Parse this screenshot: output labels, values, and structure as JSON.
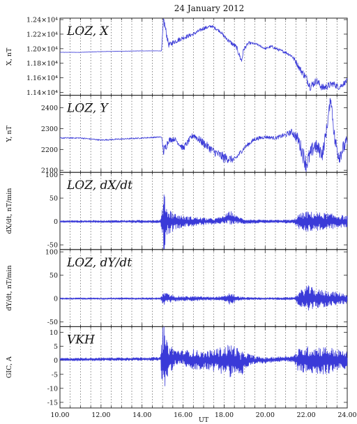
{
  "title": "24 January 2012",
  "chart_data": {
    "type": "line",
    "title": "24 January 2012",
    "xlabel": "UT",
    "xlim": [
      10,
      24
    ],
    "xticks": [
      10,
      12,
      14,
      16,
      18,
      20,
      22,
      24
    ],
    "xtick_labels": [
      "10.00",
      "12.00",
      "14.00",
      "16.00",
      "18.00",
      "20.00",
      "22.00",
      "24.00"
    ],
    "grid": "vertical dotted every 0.5 h",
    "line_color": "#3a3ad8",
    "panels": [
      {
        "label": "LOZ, X",
        "ylabel": "X, nT",
        "ylim": [
          11360,
          12420
        ],
        "yticks": [
          11400,
          11600,
          11800,
          12000,
          12200,
          12400
        ],
        "ytick_labels": [
          "1.14×10⁴",
          "1.16×10⁴",
          "1.18×10⁴",
          "1.20×10⁴",
          "1.22×10⁴",
          "1.24×10⁴"
        ],
        "series": [
          {
            "mode": "trend",
            "x": [
              10,
              11,
              12,
              13,
              14,
              14.95,
              15.05,
              15.3,
              15.6,
              16,
              16.5,
              17,
              17.4,
              17.8,
              18,
              18.3,
              18.6,
              18.85,
              18.95,
              19.2,
              19.6,
              20,
              20.3,
              20.7,
              21,
              21.3,
              21.5,
              21.7,
              22,
              22.2,
              22.5,
              22.8,
              23,
              23.3,
              23.6,
              24
            ],
            "y": [
              11950,
              11950,
              11960,
              11965,
              11970,
              11970,
              12400,
              12050,
              12100,
              12150,
              12200,
              12280,
              12310,
              12240,
              12170,
              12090,
              12020,
              11830,
              11990,
              12080,
              12060,
              12000,
              12030,
              11980,
              11950,
              11900,
              11820,
              11720,
              11600,
              11480,
              11560,
              11460,
              11480,
              11520,
              11470,
              11560
            ],
            "noise": [
              2,
              2,
              2,
              2,
              2,
              2,
              60,
              35,
              35,
              30,
              25,
              25,
              20,
              20,
              25,
              30,
              35,
              40,
              30,
              20,
              15,
              15,
              20,
              20,
              20,
              25,
              35,
              45,
              55,
              60,
              50,
              55,
              50,
              45,
              40,
              35
            ]
          }
        ]
      },
      {
        "label": "LOZ, Y",
        "ylabel": "Y, nT",
        "ylim": [
          2090,
          2460
        ],
        "yticks": [
          2100,
          2200,
          2300,
          2400
        ],
        "ytick_labels": [
          "2100",
          "2200",
          "2300",
          "2400"
        ],
        "series": [
          {
            "mode": "trend",
            "x": [
              10,
              11,
              12,
              13,
              14,
              14.95,
              15.05,
              15.3,
              15.6,
              16,
              16.5,
              17,
              17.5,
              18,
              18.5,
              19,
              19.5,
              20,
              20.5,
              21,
              21.3,
              21.6,
              22,
              22.4,
              22.8,
              23,
              23.2,
              23.4,
              23.6,
              24
            ],
            "y": [
              2255,
              2255,
              2245,
              2250,
              2255,
              2260,
              2190,
              2245,
              2250,
              2205,
              2270,
              2230,
              2190,
              2160,
              2150,
              2210,
              2250,
              2260,
              2255,
              2270,
              2285,
              2250,
              2130,
              2220,
              2180,
              2300,
              2450,
              2240,
              2170,
              2240
            ],
            "noise": [
              3,
              3,
              3,
              3,
              3,
              3,
              25,
              15,
              10,
              15,
              15,
              20,
              20,
              25,
              15,
              10,
              10,
              8,
              8,
              12,
              15,
              30,
              45,
              35,
              35,
              30,
              25,
              40,
              40,
              30
            ]
          }
        ]
      },
      {
        "label": "LOZ, dX/dt",
        "ylabel": "dX/dt, nT/min",
        "ylim": [
          -60,
          105
        ],
        "yticks": [
          -50,
          0,
          50,
          100
        ],
        "ytick_labels": [
          "-50",
          "0",
          "50",
          "100"
        ],
        "series": [
          {
            "mode": "oscillation",
            "x": [
              10,
              14.9,
              15.0,
              15.05,
              15.2,
              15.6,
              16,
              16.5,
              17,
              17.5,
              18,
              18.3,
              18.6,
              19,
              20,
              21.4,
              21.6,
              22,
              22.5,
              23,
              23.5,
              24
            ],
            "amp": [
              2,
              3,
              30,
              100,
              30,
              18,
              12,
              10,
              8,
              6,
              8,
              15,
              8,
              5,
              3,
              4,
              15,
              22,
              20,
              18,
              15,
              12
            ],
            "base": [
              0,
              0,
              0,
              0,
              0,
              0,
              0,
              0,
              0,
              0,
              4,
              8,
              4,
              0,
              0,
              0,
              0,
              0,
              0,
              0,
              0,
              0
            ]
          }
        ]
      },
      {
        "label": "LOZ, dY/dt",
        "ylabel": "dY/dt, nT/min",
        "ylim": [
          -60,
          105
        ],
        "yticks": [
          -50,
          0,
          50,
          100
        ],
        "ytick_labels": [
          "-50",
          "0",
          "50",
          "100"
        ],
        "series": [
          {
            "mode": "oscillation",
            "x": [
              10,
              14.9,
              15.05,
              15.3,
              15.6,
              16,
              16.5,
              17,
              17.5,
              18,
              18.3,
              18.6,
              19,
              20,
              21.4,
              21.6,
              22,
              22.5,
              23,
              23.5,
              24
            ],
            "amp": [
              1.5,
              2,
              14,
              10,
              6,
              5,
              5,
              4,
              4,
              5,
              14,
              5,
              3,
              2,
              3,
              12,
              30,
              20,
              18,
              14,
              10
            ],
            "base": [
              0,
              0,
              0,
              0,
              0,
              0,
              0,
              0,
              0,
              0,
              0,
              0,
              0,
              0,
              0,
              0,
              0,
              0,
              0,
              0,
              0
            ]
          }
        ]
      },
      {
        "label": "VKH",
        "ylabel": "GIC, A",
        "ylim": [
          -17,
          12
        ],
        "yticks": [
          -15,
          -10,
          -5,
          0,
          5,
          10
        ],
        "ytick_labels": [
          "-15",
          "-10",
          "-5",
          "0",
          "5",
          "10"
        ],
        "series": [
          {
            "mode": "oscillation",
            "x": [
              10,
              14.9,
              15.0,
              15.05,
              15.2,
              15.6,
              16,
              16.5,
              17,
              17.5,
              18,
              18.3,
              18.6,
              18.8,
              19,
              19.5,
              20,
              21,
              21.4,
              21.6,
              22,
              22.5,
              23,
              23.5,
              24
            ],
            "amp": [
              0.5,
              0.6,
              12,
              14,
              7,
              3,
              2.5,
              4,
              3,
              4,
              5,
              6,
              5,
              5,
              3,
              1.5,
              1,
              1,
              1.2,
              4,
              5,
              5,
              5,
              4,
              3
            ],
            "base": [
              0.3,
              0.5,
              0,
              0,
              0,
              1,
              1,
              0,
              0,
              0,
              0,
              0,
              0,
              -2,
              0,
              0,
              0,
              0.5,
              0.5,
              0,
              0,
              0,
              0,
              0,
              0
            ]
          }
        ]
      }
    ]
  }
}
